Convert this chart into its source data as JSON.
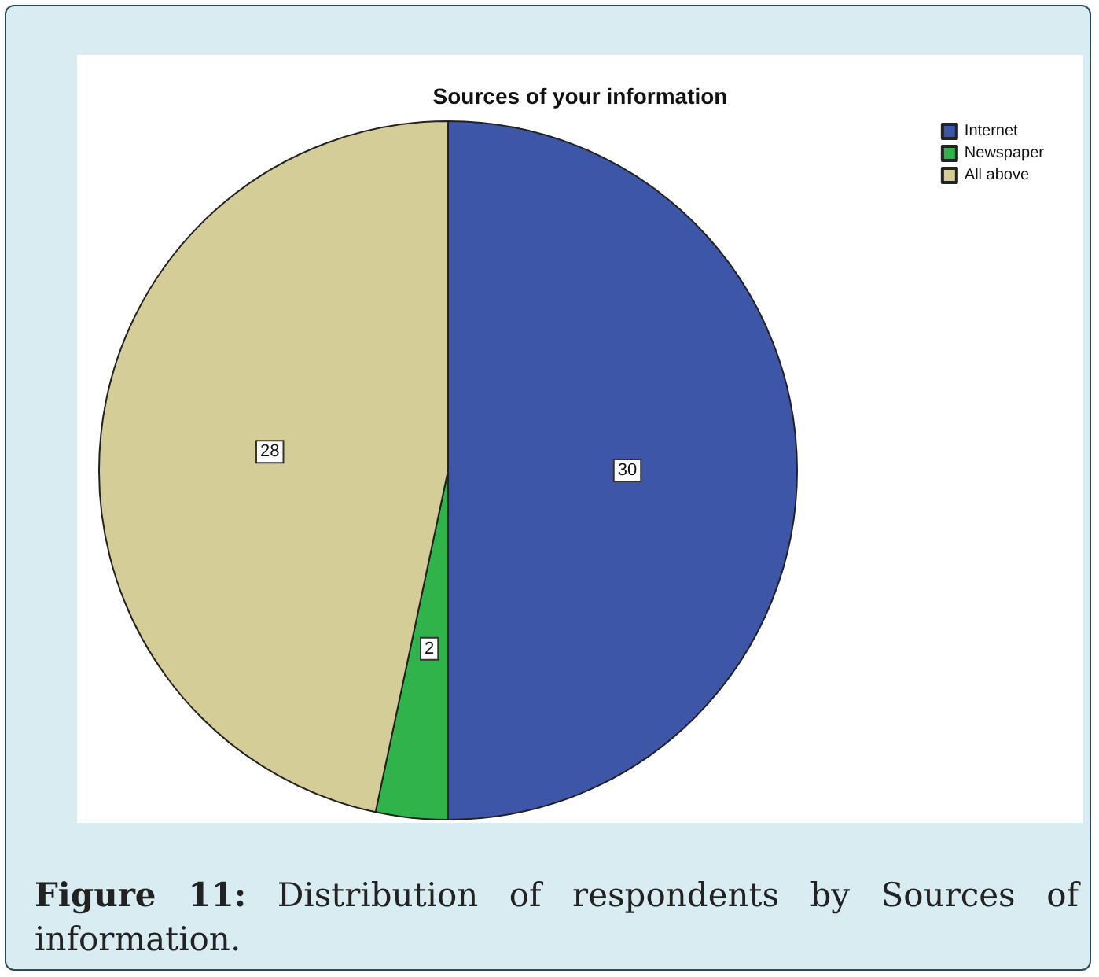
{
  "chart_data": {
    "type": "pie",
    "title": "Sources of your information",
    "categories": [
      "Internet",
      "Newspaper",
      "All above"
    ],
    "values": [
      30,
      2,
      28
    ],
    "colors": [
      "#3d56a8",
      "#2fb34a",
      "#d4cd98"
    ],
    "data_labels": true,
    "legend": "top right",
    "annotations": [
      "Figure 11: Distribution of respondents by Sources of information."
    ]
  }
}
